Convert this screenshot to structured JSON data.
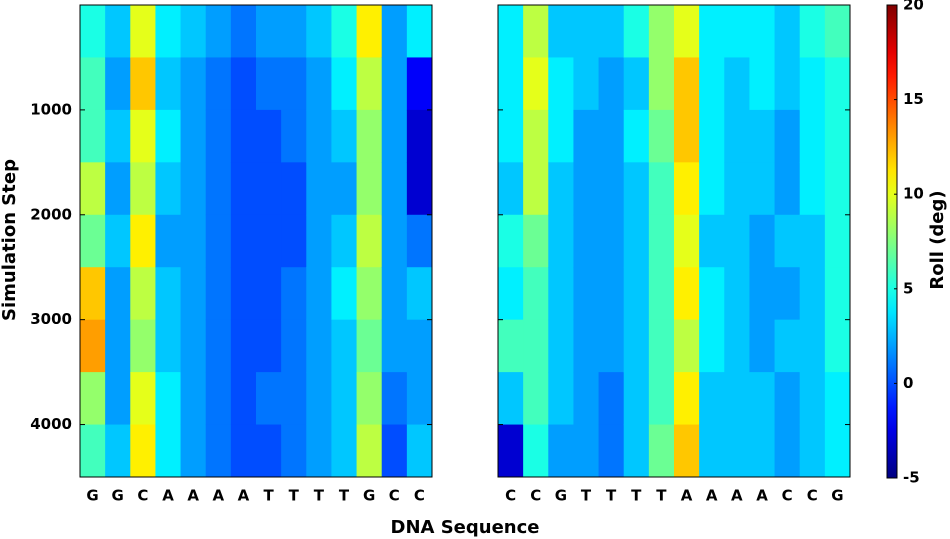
{
  "chart_data": {
    "type": "heatmap",
    "xlabel": "DNA Sequence",
    "ylabel": "Simulation Step",
    "colorbar_label": "Roll (deg)",
    "colormap": "jet",
    "clim": [
      -5,
      20
    ],
    "cticks": [
      -5,
      0,
      5,
      10,
      15,
      20
    ],
    "ylim": [
      0,
      4500
    ],
    "yticks": [
      1000,
      2000,
      3000,
      4000
    ],
    "y_bins": [
      0,
      500,
      1000,
      1500,
      2000,
      2500,
      3000,
      3500,
      4000,
      4500
    ],
    "panels": [
      {
        "categories": [
          "G",
          "G",
          "C",
          "A",
          "A",
          "A",
          "A",
          "T",
          "T",
          "T",
          "T",
          "G",
          "C",
          "C"
        ],
        "values": [
          [
            5,
            6,
            6,
            9,
            7,
            12,
            13,
            8,
            6
          ],
          [
            3,
            2,
            3,
            2,
            3,
            2,
            2,
            2,
            3
          ],
          [
            10,
            12,
            10,
            9,
            11,
            9,
            8,
            10,
            11
          ],
          [
            4,
            3,
            4,
            3,
            2,
            3,
            3,
            4,
            4
          ],
          [
            3,
            2,
            2,
            2,
            2,
            2,
            2,
            2,
            2
          ],
          [
            2,
            1,
            1,
            1,
            1,
            1,
            1,
            1,
            1
          ],
          [
            1,
            0,
            0,
            0,
            0,
            0,
            0,
            0,
            0
          ],
          [
            2,
            1,
            0,
            0,
            0,
            0,
            0,
            1,
            0
          ],
          [
            2,
            1,
            1,
            0,
            0,
            1,
            1,
            1,
            1
          ],
          [
            3,
            2,
            2,
            2,
            2,
            2,
            2,
            2,
            2
          ],
          [
            5,
            4,
            3,
            2,
            3,
            4,
            3,
            3,
            3
          ],
          [
            11,
            9,
            8,
            8,
            9,
            8,
            7,
            8,
            9
          ],
          [
            2,
            2,
            2,
            2,
            2,
            2,
            2,
            1,
            0
          ],
          [
            4,
            -2,
            -3,
            -3,
            1,
            3,
            2,
            2,
            3
          ]
        ]
      },
      {
        "categories": [
          "C",
          "C",
          "G",
          "T",
          "T",
          "T",
          "T",
          "A",
          "A",
          "A",
          "A",
          "C",
          "C",
          "G"
        ],
        "values": [
          [
            4,
            4,
            4,
            3,
            5,
            4,
            6,
            3,
            -3
          ],
          [
            9,
            10,
            9,
            9,
            7,
            6,
            6,
            6,
            5
          ],
          [
            3,
            4,
            4,
            3,
            3,
            3,
            3,
            3,
            2
          ],
          [
            3,
            3,
            2,
            2,
            2,
            2,
            2,
            2,
            2
          ],
          [
            3,
            2,
            2,
            2,
            2,
            2,
            2,
            1,
            1
          ],
          [
            5,
            3,
            4,
            3,
            3,
            3,
            3,
            3,
            3
          ],
          [
            8,
            8,
            7,
            6,
            6,
            6,
            6,
            6,
            7
          ],
          [
            10,
            12,
            12,
            11,
            10,
            11,
            9,
            11,
            12
          ],
          [
            4,
            4,
            4,
            4,
            3,
            4,
            4,
            3,
            3
          ],
          [
            4,
            3,
            3,
            3,
            3,
            3,
            3,
            3,
            3
          ],
          [
            4,
            4,
            3,
            3,
            2,
            2,
            2,
            3,
            3
          ],
          [
            3,
            3,
            2,
            2,
            3,
            2,
            3,
            2,
            2
          ],
          [
            5,
            4,
            4,
            4,
            3,
            3,
            3,
            3,
            3
          ],
          [
            6,
            5,
            5,
            5,
            5,
            5,
            5,
            4,
            4
          ]
        ]
      }
    ]
  }
}
